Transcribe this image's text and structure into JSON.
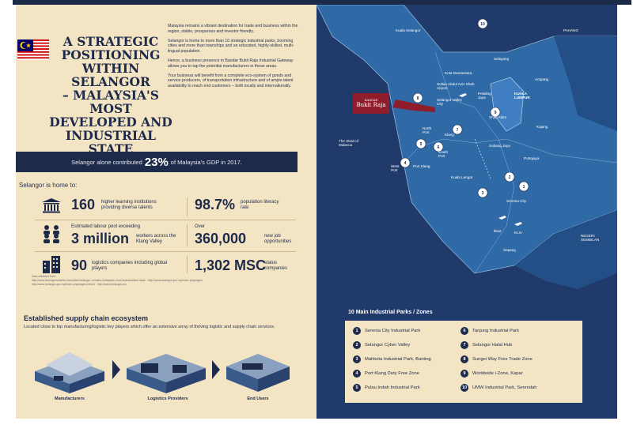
{
  "title": "A STRATEGIC\nPOSITIONING\nWITHIN SELANGOR\n– MALAYSIA'S MOST\nDEVELOPED AND\nINDUSTRIAL STATE",
  "intro": [
    "Malaysia remains a vibrant destination for trade and business within the region, stable, prosperous and investor friendly.",
    "Selangor is home to more than 10 strategic industrial parks, booming cities and more than townships and an educated, highly-skilled, multi-lingual population.",
    "Hence, a business presence in Bandar Bukit Raja Industrial Gateway allows you to tap the potential manufacturers in these areas.",
    "Your business will benefit from a complete eco-system of goods and service producers, of transportation infrastructure and of ample talent availability to reach end customers – both locally and internationally."
  ],
  "gdp": {
    "prefix": "Selangor alone contributed",
    "value": "23%",
    "suffix": "of Malaysia's GDP in 2017."
  },
  "home_label": "Selangor is home to:",
  "stats": {
    "higher_learning": {
      "num": "160",
      "text": "higher learning institutions providing diverse talents"
    },
    "literacy": {
      "num": "98.7%",
      "text": "population literacy rate"
    },
    "labour": {
      "pre": "Estimated labour pool exceeding",
      "num": "3 million",
      "text": "workers across the Klang Valley"
    },
    "jobs": {
      "pre": "Over",
      "num": "360,000",
      "text": "new job opportunities"
    },
    "logistics": {
      "num": "90",
      "text": "logistics companies including global players"
    },
    "msc": {
      "num": "1,302 MSC",
      "text": "status companies"
    }
  },
  "sources": {
    "label": "Data obtained from:",
    "lines": [
      "http://www.theedgemarkets.com/article/selangor-remains-malaysias-most-industrialised-state · http://www.selangor.gov.my/index.php/pages",
      "http://www.selangor.gov.my/index.php/pages/view/4 · http://www.mida.gov.my"
    ]
  },
  "supply": {
    "title": "Established supply chain ecosystem",
    "desc": "Located close to top manufacturing/logistic key players which offer an extensive array of thriving logistic and supply chain services.",
    "labels": [
      "Manufacturers",
      "Logistics Providers",
      "End Users"
    ]
  },
  "map": {
    "logo_top": "BANDAR",
    "logo": "Bukit Raja",
    "labels": {
      "kuala_selangor": "Kuala Selangor",
      "pahang": "PAHANG",
      "selayang": "Selayang",
      "kota_damansara": "Kota Damansara",
      "sultan_abdul": "Sultan Abdul Aziz Shah Airport",
      "ampang": "Ampang",
      "petaling": "Petaling Jaya",
      "kuala_lumpur": "KUALA LUMPUR",
      "selangor_valley": "Selangor Valley City",
      "shah_alam": "Shah Alam",
      "kajang": "Kajang",
      "strait": "The Strait of Malacca",
      "north_port": "North Port",
      "klang": "Klang",
      "subang": "Subang Jaya",
      "putrajaya": "Putrajaya",
      "west_port": "West Port",
      "port_klang": "Port Klang",
      "south_port": "South Port",
      "kuala_langat": "Kuala Langat",
      "serenia": "Serenia City",
      "klia2": "klia2",
      "klia": "KLIA",
      "sepang": "Sepang",
      "negeri": "NEGERI SEMBILAN"
    },
    "pins": [
      "10",
      "9",
      "8",
      "7",
      "6",
      "5",
      "4",
      "3",
      "2",
      "1"
    ]
  },
  "legend": {
    "title": "10 Main Industrial Parks / Zones",
    "items": [
      {
        "n": "1",
        "label": "Serenia City Industrial Park"
      },
      {
        "n": "2",
        "label": "Selangor Cyber Valley"
      },
      {
        "n": "3",
        "label": "Mahkota Industrial Park, Banting"
      },
      {
        "n": "4",
        "label": "Port Klang Duty Free Zone"
      },
      {
        "n": "5",
        "label": "Pulau Indah Industrial Park"
      },
      {
        "n": "6",
        "label": "Tanjung Industrial Park"
      },
      {
        "n": "7",
        "label": "Selangor Halal Hub"
      },
      {
        "n": "8",
        "label": "Sungei Way Free Trade Zone"
      },
      {
        "n": "9",
        "label": "Worldwide i-Zone, Kapar"
      },
      {
        "n": "10",
        "label": "UMW Industrial Park, Serendah"
      }
    ]
  },
  "colors": {
    "navy": "#1e2a4a",
    "cream": "#f3e4c4",
    "sea": "#1f3a6b",
    "land": "#2f6aa6",
    "kl": "#3f7ec0",
    "maroon": "#8f1d2c"
  }
}
